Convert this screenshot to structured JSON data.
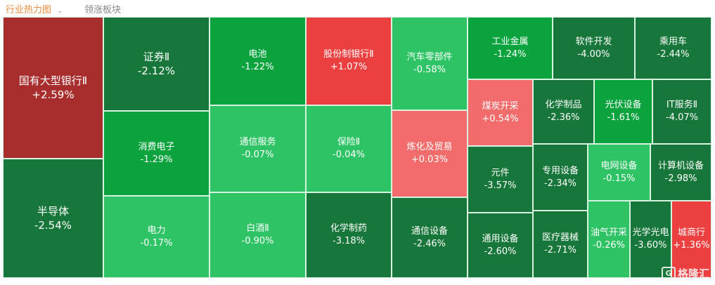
{
  "tabs": [
    {
      "label": "行业热力图",
      "active": true
    },
    {
      "label": "领涨板块",
      "active": false
    }
  ],
  "colors": {
    "dark_red": "#a82d2d",
    "red": "#ec3f3f",
    "salmon": "#f26c6c",
    "dark_green": "#17763a",
    "green": "#0aa33e",
    "light_green": "#2ec466",
    "border": "#d8f3df",
    "active_tab": "#f08a3c"
  },
  "watermark": "格隆汇",
  "tiles": [
    {
      "name": "国有大型银行Ⅱ",
      "change": "+2.59%",
      "color": "dark_red"
    },
    {
      "name": "半导体",
      "change": "-2.54%",
      "color": "dark_green"
    },
    {
      "name": "证券Ⅱ",
      "change": "-2.12%",
      "color": "dark_green"
    },
    {
      "name": "消费电子",
      "change": "-1.29%",
      "color": "green"
    },
    {
      "name": "电力",
      "change": "-0.17%",
      "color": "light_green"
    },
    {
      "name": "电池",
      "change": "-1.22%",
      "color": "green"
    },
    {
      "name": "通信服务",
      "change": "-0.07%",
      "color": "light_green"
    },
    {
      "name": "白酒Ⅱ",
      "change": "-0.90%",
      "color": "light_green"
    },
    {
      "name": "股份制银行Ⅱ",
      "change": "+1.07%",
      "color": "red"
    },
    {
      "name": "保险Ⅱ",
      "change": "-0.04%",
      "color": "light_green"
    },
    {
      "name": "化学制药",
      "change": "-3.18%",
      "color": "dark_green"
    },
    {
      "name": "汽车零部件",
      "change": "-0.58%",
      "color": "light_green"
    },
    {
      "name": "炼化及贸易",
      "change": "+0.03%",
      "color": "salmon"
    },
    {
      "name": "通信设备",
      "change": "-2.46%",
      "color": "dark_green"
    },
    {
      "name": "工业金属",
      "change": "-1.24%",
      "color": "green"
    },
    {
      "name": "软件开发",
      "change": "-4.00%",
      "color": "dark_green"
    },
    {
      "name": "乘用车",
      "change": "-2.44%",
      "color": "dark_green"
    },
    {
      "name": "煤炭开采",
      "change": "+0.54%",
      "color": "salmon"
    },
    {
      "name": "化学制品",
      "change": "-2.36%",
      "color": "dark_green"
    },
    {
      "name": "光伏设备",
      "change": "-1.61%",
      "color": "green"
    },
    {
      "name": "IT服务Ⅱ",
      "change": "-4.07%",
      "color": "dark_green"
    },
    {
      "name": "元件",
      "change": "-3.57%",
      "color": "dark_green"
    },
    {
      "name": "专用设备",
      "change": "-2.34%",
      "color": "dark_green"
    },
    {
      "name": "电网设备",
      "change": "-0.15%",
      "color": "light_green"
    },
    {
      "name": "计算机设备",
      "change": "-2.98%",
      "color": "dark_green"
    },
    {
      "name": "通用设备",
      "change": "-2.60%",
      "color": "dark_green"
    },
    {
      "name": "医疗器械",
      "change": "-2.71%",
      "color": "dark_green"
    },
    {
      "name": "油气开采",
      "change": "-0.26%",
      "color": "light_green"
    },
    {
      "name": "光学光电",
      "change": "-3.60%",
      "color": "dark_green"
    },
    {
      "name": "城商行",
      "change": "+1.36%",
      "color": "red"
    }
  ]
}
